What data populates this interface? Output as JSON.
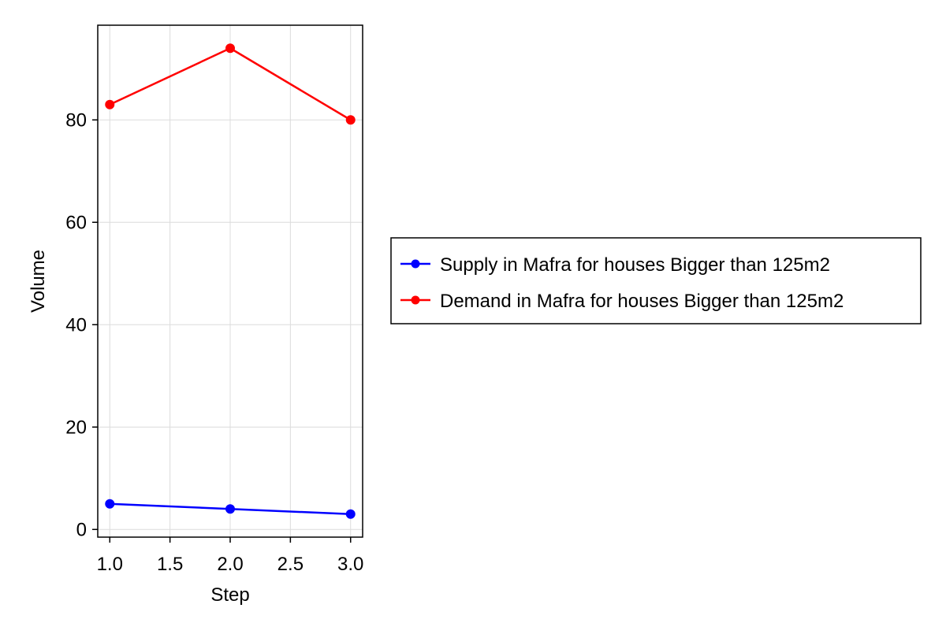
{
  "chart_data": {
    "type": "line",
    "xlabel": "Step",
    "ylabel": "Volume",
    "xlim": [
      0.9,
      3.1
    ],
    "ylim": [
      -1.5,
      98.5
    ],
    "x": [
      1.0,
      2.0,
      3.0
    ],
    "xticks": [
      1.0,
      1.5,
      2.0,
      2.5,
      3.0
    ],
    "xtick_labels": [
      "1.0",
      "1.5",
      "2.0",
      "2.5",
      "3.0"
    ],
    "yticks": [
      0,
      20,
      40,
      60,
      80
    ],
    "ytick_labels": [
      "0",
      "20",
      "40",
      "60",
      "80"
    ],
    "grid": true,
    "legend_position": "right",
    "series": [
      {
        "name": "Supply in Mafra for houses Bigger than 125m2",
        "color": "#0000ff",
        "marker": "circle",
        "values": [
          5,
          4,
          3
        ]
      },
      {
        "name": "Demand in Mafra for houses Bigger than 125m2",
        "color": "#ff0000",
        "marker": "circle",
        "values": [
          83,
          94,
          80
        ]
      }
    ]
  }
}
